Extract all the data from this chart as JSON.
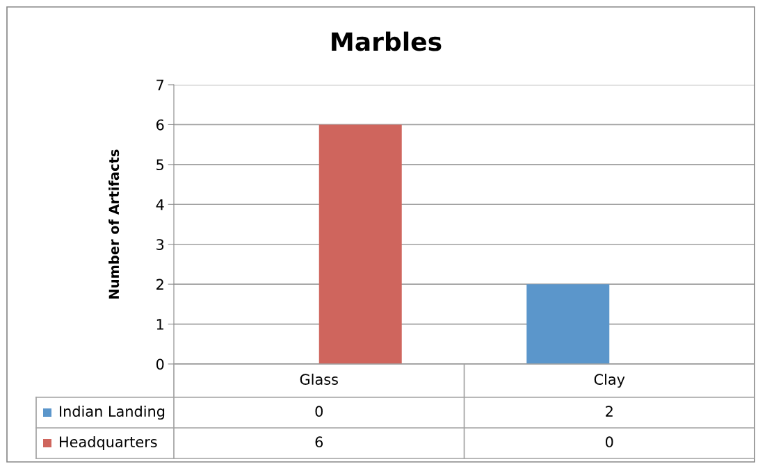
{
  "chart_data": {
    "type": "bar",
    "title": "Marbles",
    "ylabel": "Number of Artifacts",
    "categories": [
      "Glass",
      "Clay"
    ],
    "series": [
      {
        "name": "Indian Landing",
        "color": "#5b96cb",
        "values": [
          0,
          2
        ]
      },
      {
        "name": "Headquarters",
        "color": "#cf655d",
        "values": [
          6,
          0
        ]
      }
    ],
    "ylim": [
      0,
      7
    ],
    "yticks": [
      0,
      1,
      2,
      3,
      4,
      5,
      6,
      7
    ],
    "grid": "y",
    "legend": "bottom",
    "data_labels": true
  }
}
